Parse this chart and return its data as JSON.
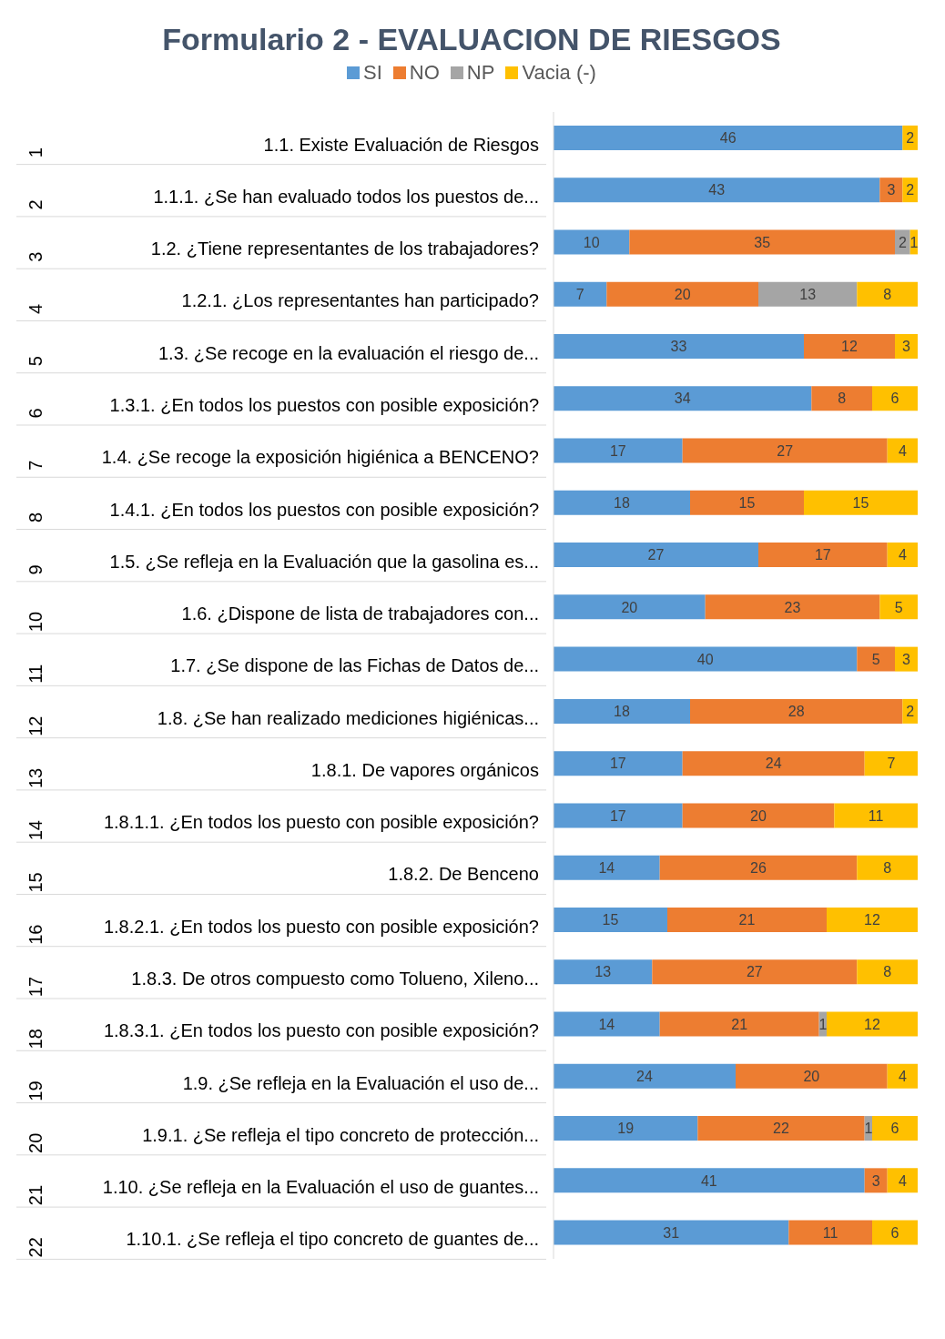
{
  "chart_data": {
    "type": "bar",
    "orientation": "horizontal",
    "stacked": true,
    "title": "Formulario 2 - EVALUACION DE RIESGOS",
    "categories": [
      "1.1. Existe Evaluación de Riesgos",
      "1.1.1. ¿Se han evaluado todos los puestos de...",
      "1.2. ¿Tiene representantes de los trabajadores?",
      "1.2.1. ¿Los representantes han participado?",
      "1.3. ¿Se recoge en la evaluación el riesgo de...",
      "1.3.1. ¿En todos los puestos con posible exposición?",
      "1.4. ¿Se recoge la exposición higiénica a BENCENO?",
      "1.4.1. ¿En todos los puestos con posible exposición?",
      "1.5. ¿Se refleja en la Evaluación que la gasolina es...",
      "1.6. ¿Dispone de lista de trabajadores con...",
      "1.7. ¿Se dispone de las Fichas de Datos de...",
      "1.8. ¿Se han realizado mediciones higiénicas...",
      "1.8.1. De vapores orgánicos",
      "1.8.1.1. ¿En todos los puesto con posible exposición?",
      "1.8.2. De Benceno",
      "1.8.2.1. ¿En todos los puesto con posible exposición?",
      "1.8.3. De otros compuesto como Tolueno, Xileno...",
      "1.8.3.1. ¿En todos los puesto con posible exposición?",
      "1.9. ¿Se refleja en la Evaluación el uso de...",
      "1.9.1. ¿Se refleja el tipo concreto de protección...",
      "1.10. ¿Se refleja en la Evaluación el uso de guantes...",
      "1.10.1. ¿Se refleja el tipo concreto de guantes de..."
    ],
    "y2_categories": [
      "1",
      "2",
      "3",
      "4",
      "5",
      "6",
      "7",
      "8",
      "9",
      "10",
      "11",
      "12",
      "13",
      "14",
      "15",
      "16",
      "17",
      "18",
      "19",
      "20",
      "21",
      "22"
    ],
    "series": [
      {
        "name": "SI",
        "color": "#5b9bd5",
        "values": [
          46,
          43,
          10,
          7,
          33,
          34,
          17,
          18,
          27,
          20,
          40,
          18,
          17,
          17,
          14,
          15,
          13,
          14,
          24,
          19,
          41,
          31
        ]
      },
      {
        "name": "NO",
        "color": "#ed7d31",
        "values": [
          null,
          3,
          35,
          20,
          12,
          8,
          27,
          15,
          17,
          23,
          5,
          28,
          24,
          20,
          26,
          21,
          27,
          21,
          20,
          22,
          3,
          11
        ]
      },
      {
        "name": "NP",
        "color": "#a5a5a5",
        "values": [
          null,
          null,
          2,
          13,
          null,
          null,
          null,
          null,
          null,
          null,
          null,
          null,
          null,
          null,
          null,
          null,
          null,
          1,
          null,
          1,
          null,
          null
        ]
      },
      {
        "name": "Vacia (-)",
        "color": "#ffc000",
        "values": [
          2,
          2,
          1,
          8,
          3,
          6,
          4,
          15,
          4,
          5,
          3,
          2,
          7,
          11,
          8,
          12,
          8,
          12,
          4,
          6,
          4,
          6
        ]
      }
    ],
    "tick_labels": "y",
    "legend": "top",
    "data_labels": true
  }
}
